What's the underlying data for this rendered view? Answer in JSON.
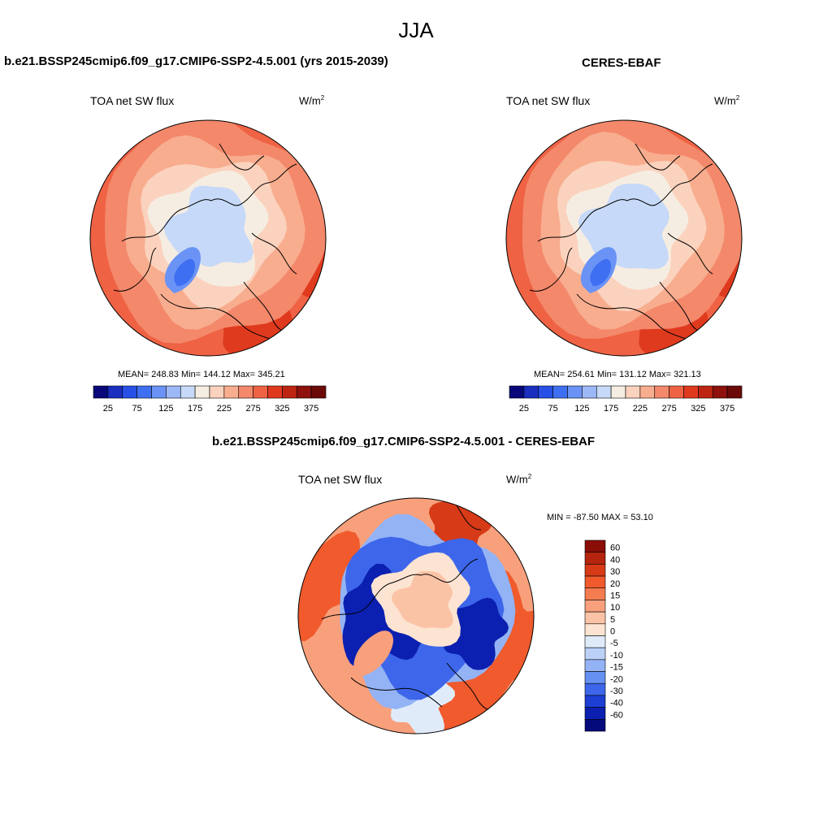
{
  "page": {
    "title": "JJA"
  },
  "panels": [
    {
      "id": "model",
      "title": "b.e21.BSSP245cmip6.f09_g17.CMIP6-SSP2-4.5.001 (yrs 2015-2039)",
      "variable": "TOA net SW flux",
      "units_base": "W/m",
      "units_exp": "2",
      "stats": "MEAN= 248.83  Min= 144.12  Max= 345.21"
    },
    {
      "id": "obs",
      "title": "CERES-EBAF",
      "variable": "TOA net SW flux",
      "units_base": "W/m",
      "units_exp": "2",
      "stats": "MEAN= 254.61  Min= 131.12  Max= 321.13"
    },
    {
      "id": "diff",
      "title": "b.e21.BSSP245cmip6.f09_g17.CMIP6-SSP2-4.5.001 - CERES-EBAF",
      "variable": "TOA net SW flux",
      "units_base": "W/m",
      "units_exp": "2",
      "stats": "MIN = -87.50 MAX =  53.10"
    }
  ],
  "chart_data": [
    {
      "type": "heatmap",
      "projection": "north-polar-stereographic",
      "title": "b.e21.BSSP245cmip6.f09_g17.CMIP6-SSP2-4.5.001 (yrs 2015-2039)",
      "variable": "TOA net SW flux",
      "units": "W/m2",
      "mean": 248.83,
      "min": 144.12,
      "max": 345.21,
      "colorbar": {
        "orientation": "horizontal",
        "tick_labels": [
          "25",
          "75",
          "125",
          "175",
          "225",
          "275",
          "325",
          "375"
        ],
        "levels": [
          25,
          50,
          75,
          100,
          125,
          150,
          175,
          200,
          225,
          250,
          275,
          300,
          325,
          350,
          375
        ],
        "colors": [
          "#08087a",
          "#1a2fc0",
          "#2650e6",
          "#3e6ff2",
          "#6a93f5",
          "#9db8f7",
          "#c6d9f8",
          "#f6ede2",
          "#fbd2bd",
          "#f8ad8f",
          "#f4886b",
          "#ef6244",
          "#e03a1e",
          "#bd2512",
          "#8e110d",
          "#6b0a08"
        ]
      }
    },
    {
      "type": "heatmap",
      "projection": "north-polar-stereographic",
      "title": "CERES-EBAF",
      "variable": "TOA net SW flux",
      "units": "W/m2",
      "mean": 254.61,
      "min": 131.12,
      "max": 321.13,
      "colorbar": {
        "orientation": "horizontal",
        "tick_labels": [
          "25",
          "75",
          "125",
          "175",
          "225",
          "275",
          "325",
          "375"
        ],
        "levels": [
          25,
          50,
          75,
          100,
          125,
          150,
          175,
          200,
          225,
          250,
          275,
          300,
          325,
          350,
          375
        ],
        "colors": [
          "#08087a",
          "#1a2fc0",
          "#2650e6",
          "#3e6ff2",
          "#6a93f5",
          "#9db8f7",
          "#c6d9f8",
          "#f6ede2",
          "#fbd2bd",
          "#f8ad8f",
          "#f4886b",
          "#ef6244",
          "#e03a1e",
          "#bd2512",
          "#8e110d",
          "#6b0a08"
        ]
      }
    },
    {
      "type": "heatmap",
      "projection": "north-polar-stereographic",
      "title": "b.e21.BSSP245cmip6.f09_g17.CMIP6-SSP2-4.5.001 - CERES-EBAF",
      "variable": "TOA net SW flux",
      "units": "W/m2",
      "min": -87.5,
      "max": 53.1,
      "colorbar": {
        "orientation": "vertical",
        "tick_labels": [
          "60",
          "40",
          "30",
          "20",
          "15",
          "10",
          "5",
          "0",
          "-5",
          "-10",
          "-15",
          "-20",
          "-30",
          "-40",
          "-60"
        ],
        "levels": [
          60,
          40,
          30,
          20,
          15,
          10,
          5,
          0,
          -5,
          -10,
          -15,
          -20,
          -30,
          -40,
          -60
        ],
        "colors": [
          "#8b0d08",
          "#b4240e",
          "#d63a17",
          "#f05a2c",
          "#f47c50",
          "#f8a07c",
          "#fbc3a6",
          "#fde4d2",
          "#e0ebfa",
          "#bcd1f8",
          "#93b3f5",
          "#6690f2",
          "#3d66ea",
          "#1e3fd4",
          "#0b20b0",
          "#050a7a"
        ]
      }
    }
  ]
}
